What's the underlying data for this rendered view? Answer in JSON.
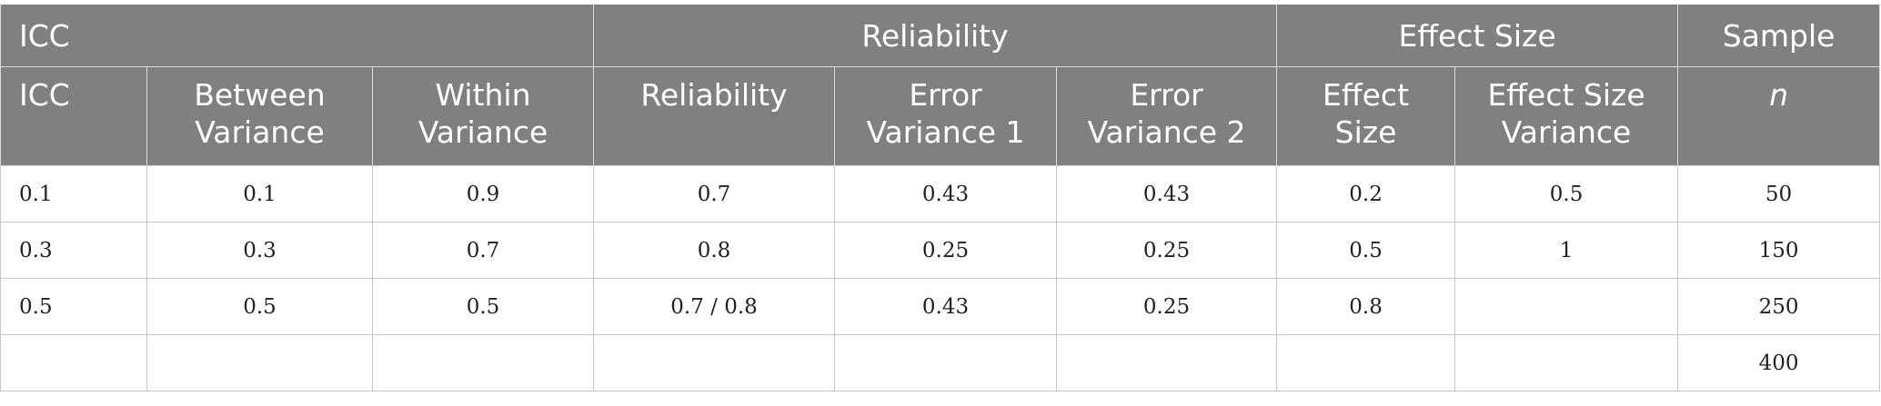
{
  "table": {
    "group_headers": [
      {
        "text": "ICC",
        "span": 3
      },
      {
        "text": "Reliability",
        "span": 3
      },
      {
        "text": "Effect Size",
        "span": 2
      },
      {
        "text": "Sample",
        "span": 1
      }
    ],
    "columns": [
      [
        "ICC"
      ],
      [
        "Between",
        "Variance"
      ],
      [
        "Within",
        "Variance"
      ],
      [
        "Reliability"
      ],
      [
        "Error",
        "Variance 1"
      ],
      [
        "Error",
        "Variance 2"
      ],
      [
        "Effect",
        "Size"
      ],
      [
        "Effect Size",
        "Variance"
      ],
      [
        "n"
      ]
    ],
    "rows": [
      [
        "0.1",
        "0.1",
        "0.9",
        "0.7",
        "0.43",
        "0.43",
        "0.2",
        "0.5",
        "50"
      ],
      [
        "0.3",
        "0.3",
        "0.7",
        "0.8",
        "0.25",
        "0.25",
        "0.5",
        "1",
        "150"
      ],
      [
        "0.5",
        "0.5",
        "0.5",
        "0.7 / 0.8",
        "0.43",
        "0.25",
        "0.8",
        null,
        "250"
      ],
      [
        null,
        null,
        null,
        null,
        null,
        null,
        null,
        null,
        "400"
      ]
    ]
  }
}
